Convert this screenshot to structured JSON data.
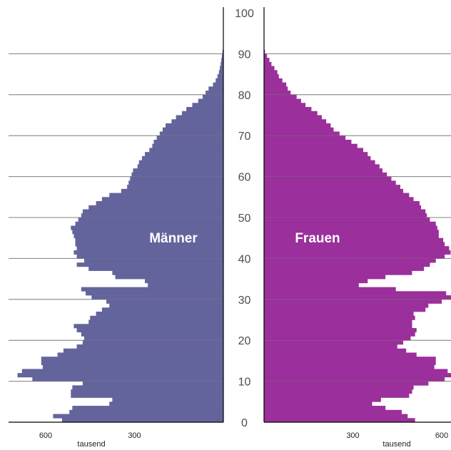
{
  "chart_data": {
    "type": "bar",
    "orientation": "horizontal-population-pyramid",
    "age_axis": {
      "range": [
        0,
        100
      ],
      "ticks": [
        0,
        10,
        20,
        30,
        40,
        50,
        60,
        70,
        80,
        90,
        100
      ]
    },
    "population_axis": {
      "range": [
        0,
        650
      ],
      "ticks": [
        600,
        300
      ],
      "unit_label": "tausend"
    },
    "gridlines_at_age": [
      10,
      20,
      30,
      40,
      50,
      60,
      70,
      80,
      90
    ],
    "series": [
      {
        "name": "Männer",
        "color": "#64649c",
        "side": "left",
        "ages": [
          0,
          1,
          2,
          3,
          4,
          5,
          6,
          7,
          8,
          9,
          10,
          11,
          12,
          13,
          14,
          15,
          16,
          17,
          18,
          19,
          20,
          21,
          22,
          23,
          24,
          25,
          26,
          27,
          28,
          29,
          30,
          31,
          32,
          33,
          34,
          35,
          36,
          37,
          38,
          39,
          40,
          41,
          42,
          43,
          44,
          45,
          46,
          47,
          48,
          49,
          50,
          51,
          52,
          53,
          54,
          55,
          56,
          57,
          58,
          59,
          60,
          61,
          62,
          63,
          64,
          65,
          66,
          67,
          68,
          69,
          70,
          71,
          72,
          73,
          74,
          75,
          76,
          77,
          78,
          79,
          80,
          81,
          82,
          83,
          84,
          85,
          86,
          87,
          88,
          89,
          90
        ],
        "values": [
          545,
          575,
          520,
          510,
          385,
          375,
          515,
          515,
          510,
          475,
          645,
          695,
          680,
          610,
          615,
          615,
          560,
          540,
          495,
          475,
          470,
          480,
          495,
          505,
          455,
          450,
          430,
          410,
          385,
          395,
          445,
          465,
          480,
          255,
          265,
          365,
          375,
          455,
          495,
          470,
          495,
          505,
          495,
          500,
          500,
          505,
          510,
          515,
          500,
          490,
          480,
          475,
          455,
          430,
          410,
          385,
          345,
          325,
          320,
          315,
          310,
          305,
          290,
          285,
          275,
          265,
          250,
          240,
          235,
          225,
          215,
          205,
          195,
          175,
          160,
          140,
          125,
          105,
          85,
          70,
          60,
          50,
          35,
          26,
          20,
          15,
          12,
          9,
          7,
          5,
          3
        ]
      },
      {
        "name": "Frauen",
        "color": "#9b2f9b",
        "side": "right",
        "ages": [
          0,
          1,
          2,
          3,
          4,
          5,
          6,
          7,
          8,
          9,
          10,
          11,
          12,
          13,
          14,
          15,
          16,
          17,
          18,
          19,
          20,
          21,
          22,
          23,
          24,
          25,
          26,
          27,
          28,
          29,
          30,
          31,
          32,
          33,
          34,
          35,
          36,
          37,
          38,
          39,
          40,
          41,
          42,
          43,
          44,
          45,
          46,
          47,
          48,
          49,
          50,
          51,
          52,
          53,
          54,
          55,
          56,
          57,
          58,
          59,
          60,
          61,
          62,
          63,
          64,
          65,
          66,
          67,
          68,
          69,
          70,
          71,
          72,
          73,
          74,
          75,
          76,
          77,
          78,
          79,
          80,
          81,
          82,
          83,
          84,
          85,
          86,
          87,
          88,
          89,
          90
        ],
        "values": [
          510,
          485,
          465,
          410,
          365,
          395,
          490,
          500,
          505,
          555,
          610,
          640,
          620,
          575,
          580,
          580,
          515,
          480,
          450,
          470,
          495,
          510,
          515,
          500,
          500,
          510,
          505,
          545,
          555,
          600,
          640,
          615,
          445,
          320,
          350,
          410,
          500,
          540,
          560,
          580,
          610,
          630,
          625,
          610,
          605,
          590,
          590,
          585,
          580,
          560,
          550,
          545,
          530,
          525,
          505,
          490,
          470,
          460,
          445,
          430,
          415,
          400,
          390,
          375,
          360,
          350,
          335,
          315,
          295,
          275,
          255,
          235,
          225,
          210,
          195,
          180,
          160,
          140,
          125,
          110,
          90,
          80,
          75,
          62,
          50,
          45,
          35,
          25,
          18,
          10,
          3
        ]
      }
    ]
  }
}
